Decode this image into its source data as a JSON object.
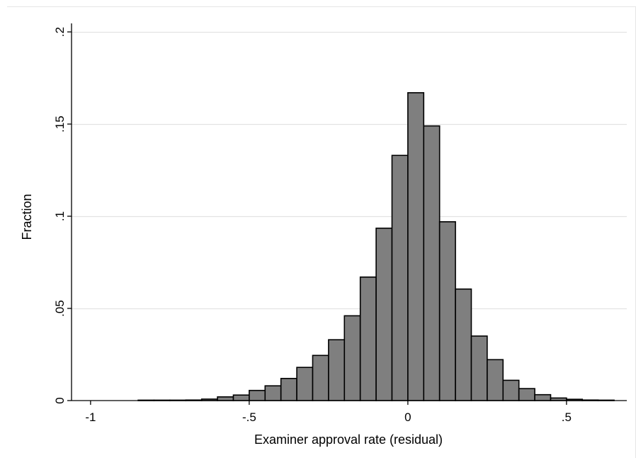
{
  "chart_data": {
    "type": "bar",
    "title": "",
    "xlabel": "Examiner approval rate (residual)",
    "ylabel": "Fraction",
    "xlim": [
      -1.06,
      0.69
    ],
    "ylim": [
      0,
      0.2
    ],
    "x_ticks": [
      {
        "value": -1,
        "label": "-1"
      },
      {
        "value": -0.5,
        "label": "-.5"
      },
      {
        "value": 0,
        "label": "0"
      },
      {
        "value": 0.5,
        "label": ".5"
      }
    ],
    "y_ticks": [
      {
        "value": 0,
        "label": "0"
      },
      {
        "value": 0.05,
        "label": ".05"
      },
      {
        "value": 0.1,
        "label": ".1"
      },
      {
        "value": 0.15,
        "label": ".15"
      },
      {
        "value": 0.2,
        "label": ".2"
      }
    ],
    "grid": true,
    "bar_fill": "#7f7f7f",
    "bar_stroke": "#000000",
    "bins": [
      {
        "x0": -0.85,
        "x1": -0.8,
        "value": 0.0
      },
      {
        "x0": -0.8,
        "x1": -0.75,
        "value": 0.0
      },
      {
        "x0": -0.75,
        "x1": -0.7,
        "value": 0.0002
      },
      {
        "x0": -0.7,
        "x1": -0.65,
        "value": 0.0003
      },
      {
        "x0": -0.65,
        "x1": -0.6,
        "value": 0.0008
      },
      {
        "x0": -0.6,
        "x1": -0.55,
        "value": 0.002
      },
      {
        "x0": -0.55,
        "x1": -0.5,
        "value": 0.003
      },
      {
        "x0": -0.5,
        "x1": -0.45,
        "value": 0.0055
      },
      {
        "x0": -0.45,
        "x1": -0.4,
        "value": 0.008
      },
      {
        "x0": -0.4,
        "x1": -0.35,
        "value": 0.012
      },
      {
        "x0": -0.35,
        "x1": -0.3,
        "value": 0.018
      },
      {
        "x0": -0.3,
        "x1": -0.25,
        "value": 0.0245
      },
      {
        "x0": -0.25,
        "x1": -0.2,
        "value": 0.033
      },
      {
        "x0": -0.2,
        "x1": -0.15,
        "value": 0.046
      },
      {
        "x0": -0.15,
        "x1": -0.1,
        "value": 0.067
      },
      {
        "x0": -0.1,
        "x1": -0.05,
        "value": 0.0935
      },
      {
        "x0": -0.05,
        "x1": 0.0,
        "value": 0.133
      },
      {
        "x0": 0.0,
        "x1": 0.05,
        "value": 0.167
      },
      {
        "x0": 0.05,
        "x1": 0.1,
        "value": 0.149
      },
      {
        "x0": 0.1,
        "x1": 0.15,
        "value": 0.097
      },
      {
        "x0": 0.15,
        "x1": 0.2,
        "value": 0.0605
      },
      {
        "x0": 0.2,
        "x1": 0.25,
        "value": 0.035
      },
      {
        "x0": 0.25,
        "x1": 0.3,
        "value": 0.0222
      },
      {
        "x0": 0.3,
        "x1": 0.35,
        "value": 0.011
      },
      {
        "x0": 0.35,
        "x1": 0.4,
        "value": 0.0065
      },
      {
        "x0": 0.4,
        "x1": 0.45,
        "value": 0.0032
      },
      {
        "x0": 0.45,
        "x1": 0.5,
        "value": 0.0014
      },
      {
        "x0": 0.5,
        "x1": 0.55,
        "value": 0.0007
      },
      {
        "x0": 0.55,
        "x1": 0.6,
        "value": 0.0003
      },
      {
        "x0": 0.6,
        "x1": 0.65,
        "value": 0.0002
      }
    ]
  }
}
